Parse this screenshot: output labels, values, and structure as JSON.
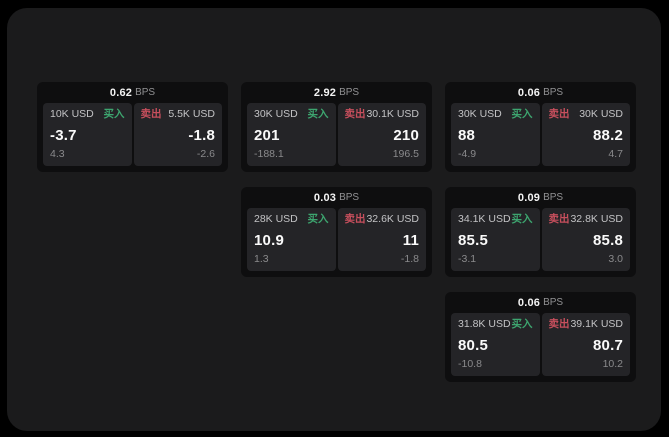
{
  "labels": {
    "buy": "买入",
    "sell": "卖出",
    "bps": "BPS"
  },
  "colors": {
    "buy": "#3da56f",
    "sell": "#c84f5d",
    "panel_bg": "#1b1b1c",
    "card_bg": "#0e0e0f",
    "tile_bg": "#242427"
  },
  "cards": [
    {
      "bps": "0.62",
      "row": 1,
      "col": 1,
      "buy": {
        "size": "10K USD",
        "price": "-3.7",
        "delta": "4.3"
      },
      "sell": {
        "size": "5.5K USD",
        "price": "-1.8",
        "delta": "-2.6"
      }
    },
    {
      "bps": "2.92",
      "row": 1,
      "col": 2,
      "buy": {
        "size": "30K USD",
        "price": "201",
        "delta": "-188.1"
      },
      "sell": {
        "size": "30.1K USD",
        "price": "210",
        "delta": "196.5"
      }
    },
    {
      "bps": "0.06",
      "row": 1,
      "col": 3,
      "buy": {
        "size": "30K USD",
        "price": "88",
        "delta": "-4.9"
      },
      "sell": {
        "size": "30K USD",
        "price": "88.2",
        "delta": "4.7"
      }
    },
    {
      "bps": "0.03",
      "row": 2,
      "col": 2,
      "buy": {
        "size": "28K USD",
        "price": "10.9",
        "delta": "1.3"
      },
      "sell": {
        "size": "32.6K USD",
        "price": "11",
        "delta": "-1.8"
      }
    },
    {
      "bps": "0.09",
      "row": 2,
      "col": 3,
      "buy": {
        "size": "34.1K USD",
        "price": "85.5",
        "delta": "-3.1"
      },
      "sell": {
        "size": "32.8K USD",
        "price": "85.8",
        "delta": "3.0"
      }
    },
    {
      "bps": "0.06",
      "row": 3,
      "col": 3,
      "buy": {
        "size": "31.8K USD",
        "price": "80.5",
        "delta": "-10.8"
      },
      "sell": {
        "size": "39.1K USD",
        "price": "80.7",
        "delta": "10.2"
      }
    }
  ]
}
